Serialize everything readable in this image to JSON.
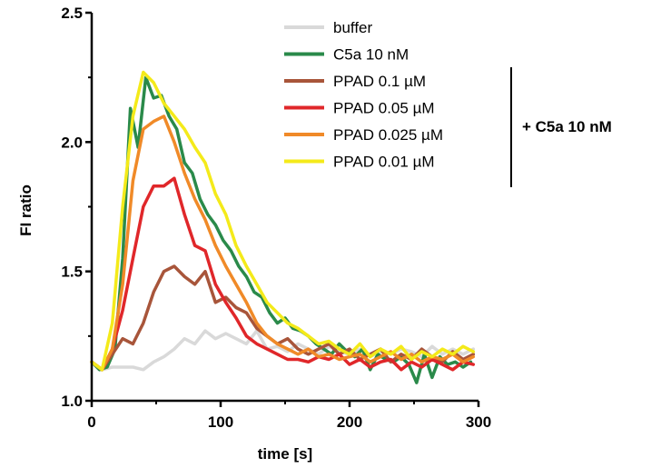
{
  "chart_data": {
    "type": "line",
    "xlabel": "time [s]",
    "ylabel": "FI ratio",
    "xlim": [
      0,
      300
    ],
    "ylim": [
      1.0,
      2.5
    ],
    "xticks": [
      "0",
      "100",
      "200",
      "300"
    ],
    "yticks": [
      "1.0",
      "1.5",
      "2.0",
      "2.5"
    ],
    "grid": false,
    "legend_position": "top-right",
    "group_label": "+ C5a 10 nM",
    "grouped_series": [
      "PPAD 0.1 µM",
      "PPAD 0.05 µM",
      "PPAD 0.025 µM",
      "PPAD 0.01 µM"
    ],
    "series": [
      {
        "name": "buffer",
        "color": "#d9d9d9",
        "x": [
          0,
          8,
          16,
          24,
          32,
          40,
          48,
          56,
          64,
          72,
          80,
          88,
          96,
          104,
          112,
          120,
          128,
          136,
          144,
          152,
          160,
          168,
          176,
          184,
          192,
          200,
          208,
          216,
          224,
          232,
          240,
          248,
          256,
          264,
          272,
          280,
          288,
          296
        ],
        "y": [
          1.15,
          1.12,
          1.13,
          1.13,
          1.13,
          1.12,
          1.15,
          1.17,
          1.2,
          1.24,
          1.22,
          1.27,
          1.24,
          1.26,
          1.24,
          1.22,
          1.27,
          1.2,
          1.21,
          1.19,
          1.22,
          1.2,
          1.18,
          1.21,
          1.19,
          1.18,
          1.2,
          1.17,
          1.19,
          1.18,
          1.2,
          1.19,
          1.17,
          1.21,
          1.18,
          1.2,
          1.18,
          1.2
        ]
      },
      {
        "name": "C5a 10 nM",
        "color": "#2a8a4a",
        "x": [
          0,
          6,
          12,
          18,
          24,
          30,
          36,
          42,
          48,
          54,
          60,
          66,
          72,
          78,
          84,
          90,
          96,
          102,
          108,
          114,
          120,
          126,
          132,
          138,
          144,
          150,
          156,
          162,
          168,
          174,
          180,
          186,
          192,
          198,
          204,
          210,
          216,
          222,
          228,
          234,
          240,
          246,
          252,
          258,
          264,
          270,
          276,
          282,
          288,
          294
        ],
        "y": [
          1.15,
          1.12,
          1.13,
          1.2,
          1.55,
          2.13,
          1.98,
          2.25,
          2.17,
          2.18,
          2.1,
          2.05,
          1.92,
          1.88,
          1.78,
          1.72,
          1.68,
          1.62,
          1.58,
          1.52,
          1.48,
          1.42,
          1.4,
          1.34,
          1.3,
          1.32,
          1.28,
          1.27,
          1.25,
          1.22,
          1.2,
          1.18,
          1.22,
          1.19,
          1.17,
          1.2,
          1.12,
          1.18,
          1.16,
          1.15,
          1.17,
          1.14,
          1.07,
          1.18,
          1.09,
          1.17,
          1.14,
          1.15,
          1.13,
          1.15
        ]
      },
      {
        "name": "PPAD 0.1 µM",
        "color": "#a8553a",
        "x": [
          0,
          8,
          16,
          24,
          32,
          40,
          48,
          56,
          64,
          72,
          80,
          88,
          96,
          104,
          112,
          120,
          128,
          136,
          144,
          152,
          160,
          168,
          176,
          184,
          192,
          200,
          208,
          216,
          224,
          232,
          240,
          248,
          256,
          264,
          272,
          280,
          288,
          296
        ],
        "y": [
          1.15,
          1.12,
          1.18,
          1.24,
          1.22,
          1.3,
          1.42,
          1.5,
          1.52,
          1.48,
          1.45,
          1.5,
          1.38,
          1.4,
          1.36,
          1.34,
          1.28,
          1.25,
          1.22,
          1.24,
          1.2,
          1.18,
          1.2,
          1.22,
          1.18,
          1.2,
          1.16,
          1.18,
          1.2,
          1.15,
          1.18,
          1.16,
          1.2,
          1.17,
          1.15,
          1.19,
          1.16,
          1.18
        ]
      },
      {
        "name": "PPAD 0.05 µM",
        "color": "#e0272a",
        "x": [
          0,
          8,
          16,
          24,
          32,
          40,
          48,
          56,
          64,
          72,
          80,
          88,
          96,
          104,
          112,
          120,
          128,
          136,
          144,
          152,
          160,
          168,
          176,
          184,
          192,
          200,
          208,
          216,
          224,
          232,
          240,
          248,
          256,
          264,
          272,
          280,
          288,
          296
        ],
        "y": [
          1.15,
          1.12,
          1.2,
          1.35,
          1.55,
          1.75,
          1.83,
          1.83,
          1.86,
          1.72,
          1.6,
          1.58,
          1.45,
          1.38,
          1.32,
          1.25,
          1.22,
          1.2,
          1.18,
          1.16,
          1.16,
          1.15,
          1.17,
          1.16,
          1.18,
          1.14,
          1.16,
          1.13,
          1.15,
          1.16,
          1.12,
          1.15,
          1.13,
          1.16,
          1.14,
          1.12,
          1.15,
          1.14
        ]
      },
      {
        "name": "PPAD 0.025 µM",
        "color": "#f08a28",
        "x": [
          0,
          8,
          16,
          24,
          32,
          40,
          48,
          56,
          64,
          72,
          80,
          88,
          96,
          104,
          112,
          120,
          128,
          136,
          144,
          152,
          160,
          168,
          176,
          184,
          192,
          200,
          208,
          216,
          224,
          232,
          240,
          248,
          256,
          264,
          272,
          280,
          288,
          296
        ],
        "y": [
          1.15,
          1.12,
          1.2,
          1.45,
          1.85,
          2.05,
          2.08,
          2.1,
          2.0,
          1.88,
          1.78,
          1.7,
          1.6,
          1.52,
          1.45,
          1.38,
          1.3,
          1.25,
          1.22,
          1.2,
          1.18,
          1.2,
          1.17,
          1.18,
          1.16,
          1.17,
          1.18,
          1.15,
          1.17,
          1.19,
          1.16,
          1.18,
          1.15,
          1.17,
          1.16,
          1.18,
          1.15,
          1.17
        ]
      },
      {
        "name": "PPAD 0.01 µM",
        "color": "#f4ea1a",
        "x": [
          0,
          8,
          16,
          24,
          32,
          40,
          48,
          56,
          64,
          72,
          80,
          88,
          96,
          104,
          112,
          120,
          128,
          136,
          144,
          152,
          160,
          168,
          176,
          184,
          192,
          200,
          208,
          216,
          224,
          232,
          240,
          248,
          256,
          264,
          272,
          280,
          288,
          296
        ],
        "y": [
          1.15,
          1.12,
          1.3,
          1.75,
          2.1,
          2.27,
          2.23,
          2.15,
          2.1,
          2.05,
          1.98,
          1.92,
          1.8,
          1.72,
          1.6,
          1.52,
          1.45,
          1.38,
          1.34,
          1.3,
          1.28,
          1.25,
          1.22,
          1.23,
          1.2,
          1.18,
          1.22,
          1.17,
          1.2,
          1.18,
          1.21,
          1.16,
          1.19,
          1.17,
          1.2,
          1.18,
          1.21,
          1.19
        ]
      }
    ]
  }
}
